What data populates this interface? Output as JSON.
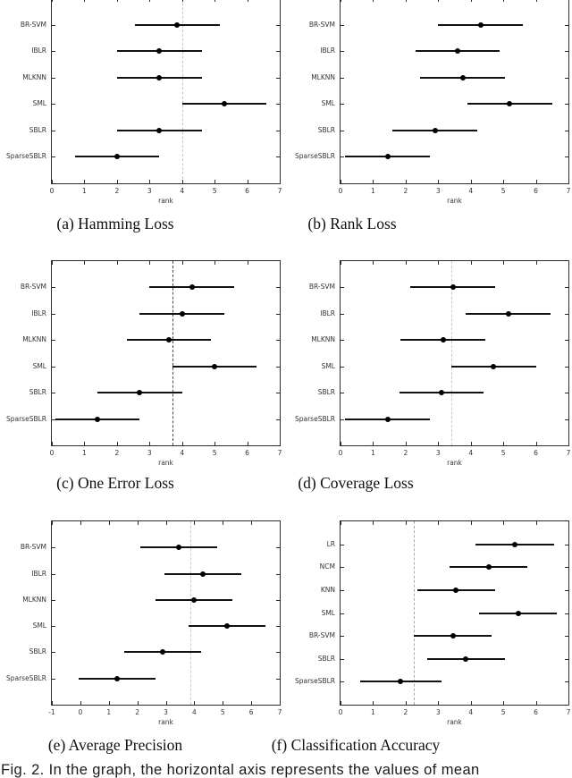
{
  "figure": {
    "caption": "Fig. 2. In the graph, the horizontal axis represents the values of mean"
  },
  "chart_data": [
    {
      "id": "a",
      "type": "scatter",
      "caption": "(a) Hamming Loss",
      "xlabel": "rank",
      "xlim": [
        0,
        7
      ],
      "xticks": [
        0,
        1,
        2,
        3,
        4,
        5,
        6,
        7
      ],
      "grid": false,
      "ref_line": {
        "x": 4.0,
        "style": "dashed",
        "color": "#c4c4c4"
      },
      "points": [
        {
          "label": "BR-SVM",
          "mean": 3.85,
          "lo": 2.55,
          "hi": 5.15
        },
        {
          "label": "IBLR",
          "mean": 3.3,
          "lo": 2.0,
          "hi": 4.6
        },
        {
          "label": "MLKNN",
          "mean": 3.3,
          "lo": 2.0,
          "hi": 4.6
        },
        {
          "label": "SML",
          "mean": 5.3,
          "lo": 4.0,
          "hi": 6.6
        },
        {
          "label": "SBLR",
          "mean": 3.3,
          "lo": 2.0,
          "hi": 4.6
        },
        {
          "label": "SparseSBLR",
          "mean": 2.0,
          "lo": 0.7,
          "hi": 3.3
        }
      ]
    },
    {
      "id": "b",
      "type": "scatter",
      "caption": "(b) Rank Loss",
      "xlabel": "rank",
      "xlim": [
        0,
        7
      ],
      "xticks": [
        0,
        1,
        2,
        3,
        4,
        5,
        6,
        7
      ],
      "grid": false,
      "ref_line": null,
      "points": [
        {
          "label": "BR-SVM",
          "mean": 4.3,
          "lo": 3.0,
          "hi": 5.6
        },
        {
          "label": "IBLR",
          "mean": 3.6,
          "lo": 2.3,
          "hi": 4.9
        },
        {
          "label": "MLKNN",
          "mean": 3.75,
          "lo": 2.45,
          "hi": 5.05
        },
        {
          "label": "SML",
          "mean": 5.2,
          "lo": 3.9,
          "hi": 6.5
        },
        {
          "label": "SBLR",
          "mean": 2.9,
          "lo": 1.6,
          "hi": 4.2
        },
        {
          "label": "SparseSBLR",
          "mean": 1.45,
          "lo": 0.15,
          "hi": 2.75
        }
      ]
    },
    {
      "id": "c",
      "type": "scatter",
      "caption": "(c) One Error Loss",
      "xlabel": "rank",
      "xlim": [
        0,
        7
      ],
      "xticks": [
        0,
        1,
        2,
        3,
        4,
        5,
        6,
        7
      ],
      "grid": false,
      "ref_line": {
        "x": 3.7,
        "style": "dashed",
        "color": "#4a4a4a"
      },
      "points": [
        {
          "label": "BR-SVM",
          "mean": 4.3,
          "lo": 3.0,
          "hi": 5.6
        },
        {
          "label": "IBLR",
          "mean": 4.0,
          "lo": 2.7,
          "hi": 5.3
        },
        {
          "label": "MLKNN",
          "mean": 3.6,
          "lo": 2.3,
          "hi": 4.9
        },
        {
          "label": "SML",
          "mean": 5.0,
          "lo": 3.7,
          "hi": 6.3
        },
        {
          "label": "SBLR",
          "mean": 2.7,
          "lo": 1.4,
          "hi": 4.0
        },
        {
          "label": "SparseSBLR",
          "mean": 1.4,
          "lo": 0.1,
          "hi": 2.7
        }
      ]
    },
    {
      "id": "d",
      "type": "scatter",
      "caption": "(d) Coverage Loss",
      "xlabel": "rank",
      "xlim": [
        0,
        7
      ],
      "xticks": [
        0,
        1,
        2,
        3,
        4,
        5,
        6,
        7
      ],
      "grid": false,
      "ref_line": {
        "x": 3.4,
        "style": "dashed",
        "color": "#c8c8c8"
      },
      "points": [
        {
          "label": "BR-SVM",
          "mean": 3.45,
          "lo": 2.15,
          "hi": 4.75
        },
        {
          "label": "IBLR",
          "mean": 5.15,
          "lo": 3.85,
          "hi": 6.45
        },
        {
          "label": "MLKNN",
          "mean": 3.15,
          "lo": 1.85,
          "hi": 4.45
        },
        {
          "label": "SML",
          "mean": 4.7,
          "lo": 3.4,
          "hi": 6.0
        },
        {
          "label": "SBLR",
          "mean": 3.1,
          "lo": 1.8,
          "hi": 4.4
        },
        {
          "label": "SparseSBLR",
          "mean": 1.45,
          "lo": 0.15,
          "hi": 2.75
        }
      ]
    },
    {
      "id": "e",
      "type": "scatter",
      "caption": "(e) Average Precision",
      "xlabel": "rank",
      "xlim": [
        -1,
        7
      ],
      "xticks": [
        -1,
        0,
        1,
        2,
        3,
        4,
        5,
        6,
        7
      ],
      "grid": false,
      "ref_line": {
        "x": 3.85,
        "style": "dashed",
        "color": "#cccccc"
      },
      "points": [
        {
          "label": "BR-SVM",
          "mean": 3.45,
          "lo": 2.1,
          "hi": 4.8
        },
        {
          "label": "IBLR",
          "mean": 4.3,
          "lo": 2.95,
          "hi": 5.65
        },
        {
          "label": "MLKNN",
          "mean": 4.0,
          "lo": 2.65,
          "hi": 5.35
        },
        {
          "label": "SML",
          "mean": 5.15,
          "lo": 3.8,
          "hi": 6.5
        },
        {
          "label": "SBLR",
          "mean": 2.9,
          "lo": 1.55,
          "hi": 4.25
        },
        {
          "label": "SparseSBLR",
          "mean": 1.3,
          "lo": -0.05,
          "hi": 2.65
        }
      ]
    },
    {
      "id": "f",
      "type": "scatter",
      "caption": "(f) Classification Accuracy",
      "xlabel": "rank",
      "xlim": [
        0,
        7
      ],
      "xticks": [
        0,
        1,
        2,
        3,
        4,
        5,
        6,
        7
      ],
      "grid": false,
      "ref_line": {
        "x": 2.25,
        "style": "dashed",
        "color": "#a8a8a8"
      },
      "points": [
        {
          "label": "LR",
          "mean": 5.35,
          "lo": 4.15,
          "hi": 6.55
        },
        {
          "label": "NCM",
          "mean": 4.55,
          "lo": 3.35,
          "hi": 5.75
        },
        {
          "label": "KNN",
          "mean": 3.55,
          "lo": 2.35,
          "hi": 4.75
        },
        {
          "label": "SML",
          "mean": 5.45,
          "lo": 4.25,
          "hi": 6.65
        },
        {
          "label": "BR-SVM",
          "mean": 3.45,
          "lo": 2.25,
          "hi": 4.65
        },
        {
          "label": "SBLR",
          "mean": 3.85,
          "lo": 2.65,
          "hi": 5.05
        },
        {
          "label": "SparseSBLR",
          "mean": 1.85,
          "lo": 0.6,
          "hi": 3.1
        }
      ]
    }
  ]
}
